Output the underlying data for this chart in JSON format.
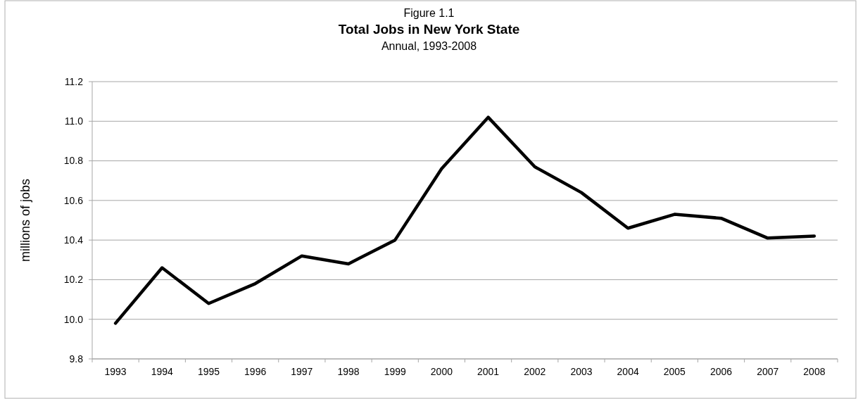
{
  "chart_data": {
    "type": "line",
    "title": "Total Jobs in New York State",
    "subtitle": "Annual, 1993-2008",
    "annotations": [
      "Figure 1.1"
    ],
    "ylabel": "millions of jobs",
    "categories": [
      "1993",
      "1994",
      "1995",
      "1996",
      "1997",
      "1998",
      "1999",
      "2000",
      "2001",
      "2002",
      "2003",
      "2004",
      "2005",
      "2006",
      "2007",
      "2008"
    ],
    "series": [
      {
        "color": "#000000",
        "values": [
          9.98,
          10.26,
          10.08,
          10.18,
          10.32,
          10.28,
          10.4,
          10.76,
          11.02,
          10.77,
          10.64,
          10.46,
          10.53,
          10.51,
          10.41,
          10.42
        ]
      }
    ],
    "ylim": [
      9.8,
      11.2
    ],
    "yticks": [
      {
        "value": 9.8,
        "label": "9.8"
      },
      {
        "value": 10,
        "label": "10.0"
      },
      {
        "value": 10.2,
        "label": "10.2"
      },
      {
        "value": 10.4,
        "label": "10.4"
      },
      {
        "value": 10.6,
        "label": "10.6"
      },
      {
        "value": 10.8,
        "label": "10.8"
      },
      {
        "value": 11,
        "label": "11.0"
      },
      {
        "value": 11.2,
        "label": "11.2"
      }
    ],
    "grid": "y",
    "marker": "none",
    "line_style": "solid"
  }
}
